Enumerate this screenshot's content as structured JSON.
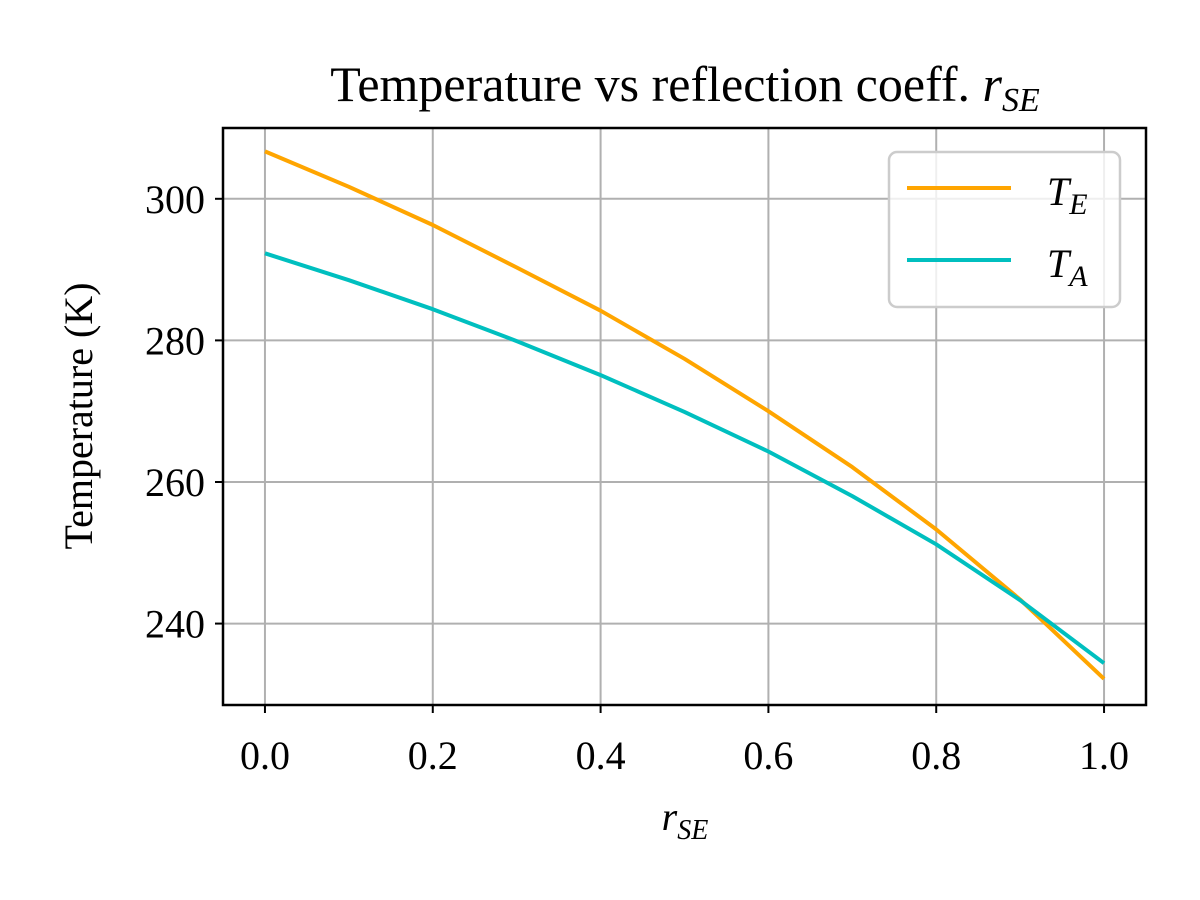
{
  "chart_data": {
    "type": "line",
    "title": "Temperature vs reflection coeff. ",
    "title_math": {
      "base": "r",
      "sub": "SE"
    },
    "xlabel": {
      "base": "r",
      "sub": "SE"
    },
    "ylabel": "Temperature (K)",
    "xlim": [
      -0.05,
      1.05
    ],
    "ylim": [
      228.5,
      310
    ],
    "xticks": [
      0.0,
      0.2,
      0.4,
      0.6,
      0.8,
      1.0
    ],
    "xtick_labels": [
      "0.0",
      "0.2",
      "0.4",
      "0.6",
      "0.8",
      "1.0"
    ],
    "yticks": [
      240,
      260,
      280,
      300
    ],
    "ytick_labels": [
      "240",
      "260",
      "280",
      "300"
    ],
    "grid": true,
    "legend_position": "top-right",
    "x": [
      0.0,
      0.1,
      0.2,
      0.3,
      0.4,
      0.5,
      0.6,
      0.7,
      0.8,
      0.9,
      1.0
    ],
    "series": [
      {
        "name": "T_E",
        "label": {
          "base": "T",
          "sub": "E"
        },
        "color": "#ffa500",
        "values": [
          306.7,
          301.7,
          296.3,
          290.3,
          284.2,
          277.4,
          270.0,
          262.1,
          253.3,
          243.4,
          232.2
        ]
      },
      {
        "name": "T_A",
        "label": {
          "base": "T",
          "sub": "A"
        },
        "color": "#00bfbf",
        "values": [
          292.3,
          288.5,
          284.4,
          279.9,
          275.1,
          269.9,
          264.3,
          258.0,
          251.2,
          243.3,
          234.4
        ]
      }
    ]
  }
}
